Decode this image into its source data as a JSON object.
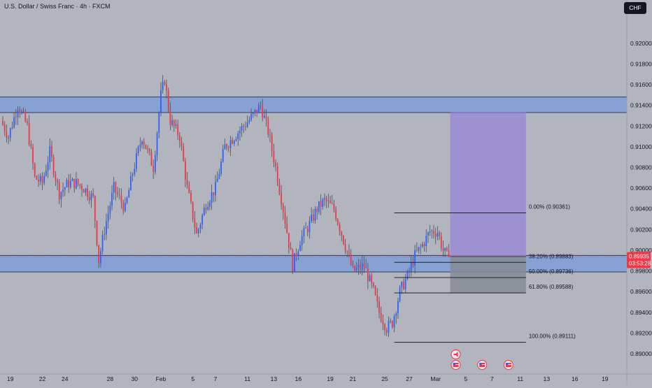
{
  "header": {
    "title": "U.S. Dollar / Swiss Franc · 4h · FXCM",
    "currency": "CHF"
  },
  "colors": {
    "background": "#b2b5be",
    "bull": "#2962ff",
    "bear": "#f23645",
    "wick": "#4a4e5a",
    "zone_fill": "#7f9dd8",
    "zone_line": "#2e3a5a",
    "target_fill": "#9a8bd6",
    "stop_fill": "#868b96",
    "fib_line": "#1e222d",
    "price_badge": "#f23645"
  },
  "chart_data": {
    "type": "candlestick",
    "symbol": "USDCHF",
    "interval": "4h",
    "ylim": [
      0.89,
      0.921
    ],
    "price_ticks": [
      "0.92000",
      "0.91800",
      "0.91600",
      "0.91400",
      "0.91200",
      "0.91000",
      "0.90800",
      "0.90600",
      "0.90400",
      "0.90200",
      "0.90000",
      "0.89800",
      "0.89600",
      "0.89400",
      "0.89200",
      "0.89000"
    ],
    "time_ticks": [
      {
        "label": "19",
        "bar": 4
      },
      {
        "label": "22",
        "bar": 21
      },
      {
        "label": "24",
        "bar": 33
      },
      {
        "label": "28",
        "bar": 57
      },
      {
        "label": "30",
        "bar": 70
      },
      {
        "label": "Feb",
        "bar": 84
      },
      {
        "label": "5",
        "bar": 101
      },
      {
        "label": "7",
        "bar": 113
      },
      {
        "label": "11",
        "bar": 130
      },
      {
        "label": "13",
        "bar": 144
      },
      {
        "label": "16",
        "bar": 157
      },
      {
        "label": "19",
        "bar": 174
      },
      {
        "label": "21",
        "bar": 186
      },
      {
        "label": "25",
        "bar": 203
      },
      {
        "label": "27",
        "bar": 216
      },
      {
        "label": "Mar",
        "bar": 230
      },
      {
        "label": "5",
        "bar": 246
      },
      {
        "label": "7",
        "bar": 260
      },
      {
        "label": "11",
        "bar": 275
      },
      {
        "label": "13",
        "bar": 289
      },
      {
        "label": "16",
        "bar": 304
      },
      {
        "label": "19",
        "bar": 320
      }
    ],
    "bar_count": 336,
    "last_bar": 237,
    "waypoints": [
      [
        0,
        0.9125
      ],
      [
        4,
        0.911
      ],
      [
        9,
        0.914
      ],
      [
        14,
        0.912
      ],
      [
        18,
        0.907
      ],
      [
        22,
        0.9065
      ],
      [
        26,
        0.9095
      ],
      [
        31,
        0.9055
      ],
      [
        36,
        0.9065
      ],
      [
        40,
        0.9065
      ],
      [
        44,
        0.906
      ],
      [
        49,
        0.905
      ],
      [
        52,
        0.899
      ],
      [
        55,
        0.902
      ],
      [
        60,
        0.906
      ],
      [
        63,
        0.905
      ],
      [
        66,
        0.904
      ],
      [
        70,
        0.9075
      ],
      [
        75,
        0.911
      ],
      [
        81,
        0.908
      ],
      [
        85,
        0.915
      ],
      [
        87,
        0.9165
      ],
      [
        90,
        0.9125
      ],
      [
        95,
        0.911
      ],
      [
        99,
        0.906
      ],
      [
        104,
        0.9015
      ],
      [
        109,
        0.9045
      ],
      [
        114,
        0.906
      ],
      [
        119,
        0.91
      ],
      [
        124,
        0.911
      ],
      [
        129,
        0.912
      ],
      [
        134,
        0.913
      ],
      [
        138,
        0.914
      ],
      [
        142,
        0.9115
      ],
      [
        146,
        0.908
      ],
      [
        150,
        0.904
      ],
      [
        155,
        0.8985
      ],
      [
        159,
        0.901
      ],
      [
        164,
        0.9025
      ],
      [
        168,
        0.904
      ],
      [
        172,
        0.9048
      ],
      [
        177,
        0.904
      ],
      [
        182,
        0.901
      ],
      [
        187,
        0.898
      ],
      [
        193,
        0.8985
      ],
      [
        198,
        0.896
      ],
      [
        201,
        0.894
      ],
      [
        205,
        0.8925
      ],
      [
        208,
        0.893
      ],
      [
        212,
        0.896
      ],
      [
        216,
        0.8975
      ],
      [
        220,
        0.8995
      ],
      [
        224,
        0.9005
      ],
      [
        228,
        0.9018
      ],
      [
        232,
        0.9018
      ],
      [
        235,
        0.9
      ],
      [
        237,
        0.8994
      ]
    ],
    "last_price": "0.89935",
    "countdown": "03:53:28",
    "zones": [
      {
        "name": "supply-zone",
        "from": 0.9133,
        "to": 0.9148
      },
      {
        "name": "demand-zone",
        "from": 0.8979,
        "to": 0.8995
      }
    ],
    "fibonacci": {
      "x_from_bar": 208,
      "x_to_bar": 278,
      "levels": [
        {
          "label": "0.00% (0.90361)",
          "price": 0.90361
        },
        {
          "label": "38.20% (0.89883)",
          "price": 0.89883
        },
        {
          "label": "50.00% (0.89736)",
          "price": 0.89736
        },
        {
          "label": "61.80% (0.89588)",
          "price": 0.89588
        },
        {
          "label": "100.00% (0.89111)",
          "price": 0.89111
        }
      ]
    },
    "position": {
      "side": "long",
      "from_bar": 237,
      "to_bar": 278,
      "entry": 0.8994,
      "target": 0.9133,
      "stop": 0.8959
    },
    "event_icons": [
      {
        "name": "speaker-event-icon",
        "bar": 237,
        "row": 0
      },
      {
        "name": "us-flag-icon",
        "bar": 237,
        "row": 1
      },
      {
        "name": "us-flag-icon",
        "bar": 251,
        "row": 1
      },
      {
        "name": "us-flag-icon",
        "bar": 265,
        "row": 1
      }
    ]
  }
}
